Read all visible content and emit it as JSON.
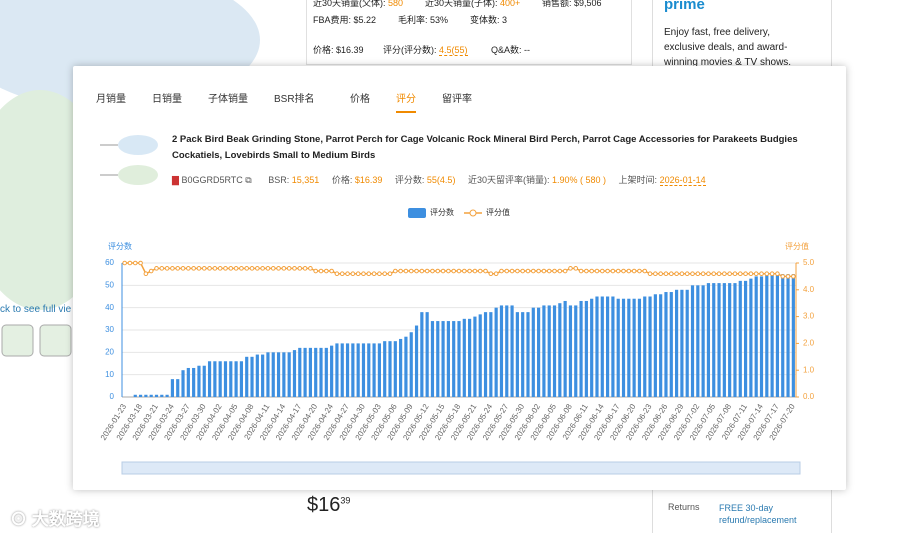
{
  "background": {
    "stats_top": [
      {
        "label": "近30天销量(父体):",
        "value": "580"
      },
      {
        "label": "近30天销量(子体):",
        "value": "400+"
      },
      {
        "label": "销售额:",
        "value": "$9,506"
      }
    ],
    "stats_mid": [
      {
        "label": "FBA费用:",
        "value": "$5.22"
      },
      {
        "label": "毛利率:",
        "value": "53%"
      },
      {
        "label": "变体数:",
        "value": "3"
      }
    ],
    "stats_price": [
      {
        "label": "价格:",
        "value": "$16.39"
      },
      {
        "label": "评分(评分数):",
        "value": "4.5(55)"
      },
      {
        "label": "Q&A数:",
        "value": "--"
      }
    ],
    "prime": {
      "logo": "prime",
      "text": "Enjoy fast, free delivery, exclusive deals, and award-winning movies & TV shows."
    },
    "left_hint": "ck to see full vie",
    "price": {
      "whole": "$16",
      "fraction": "39"
    },
    "returns": {
      "label": "Returns",
      "value": "FREE 30-day refund/replacement"
    },
    "watermark": "大数跨境"
  },
  "popup": {
    "tabs": [
      "月销量",
      "日销量",
      "子体销量",
      "BSR排名",
      "价格",
      "评分",
      "留评率"
    ],
    "active_tab": 5,
    "product": {
      "title": "2 Pack Bird Beak Grinding Stone, Parrot Perch for Cage Volcanic Rock Mineral Bird Perch, Parrot Cage Accessories for Parakeets Budgies Cockatiels, Lovebirds Small to Medium Birds",
      "asin": "B0GGRD5RTC",
      "meta": [
        {
          "label": "BSR:",
          "value": "15,351"
        },
        {
          "label": "价格:",
          "value": "$16.39"
        },
        {
          "label": "评分数:",
          "value": "55(4.5)"
        },
        {
          "label": "近30天留评率(销量):",
          "value": "1.90% ( 580 )"
        },
        {
          "label": "上架时间:",
          "value": "2026-01-14"
        }
      ]
    }
  },
  "chart_data": {
    "type": "bar",
    "y_label": "评分数",
    "y2_label": "评分值",
    "grid": true,
    "legend": "top",
    "categories": [
      "2026-01-23",
      null,
      null,
      "2026-03-18",
      null,
      null,
      "2026-03-21",
      null,
      null,
      "2026-03-24",
      null,
      null,
      "2026-03-27",
      null,
      null,
      "2026-03-30",
      null,
      null,
      "2026-04-02",
      null,
      null,
      "2026-04-05",
      null,
      null,
      "2026-04-08",
      null,
      null,
      "2026-04-11",
      null,
      null,
      "2026-04-14",
      null,
      null,
      "2026-04-17",
      null,
      null,
      "2026-04-20",
      null,
      null,
      "2026-04-24",
      null,
      null,
      "2026-04-27",
      null,
      null,
      "2026-04-30",
      null,
      null,
      "2026-05-03",
      null,
      null,
      "2026-05-06",
      null,
      null,
      "2026-05-09",
      null,
      null,
      "2026-05-12",
      null,
      null,
      "2026-05-15",
      null,
      null,
      "2026-05-18",
      null,
      null,
      "2026-05-21",
      null,
      null,
      "2026-05-24",
      null,
      null,
      "2026-05-27",
      null,
      null,
      "2026-05-30",
      null,
      null,
      "2026-06-02",
      null,
      null,
      "2026-06-05",
      null,
      null,
      "2026-06-08",
      null,
      null,
      "2026-06-11",
      null,
      null,
      "2026-06-14",
      null,
      null,
      "2026-06-17",
      null,
      null,
      "2026-06-20",
      null,
      null,
      "2026-06-23",
      null,
      null,
      "2026-06-26",
      null,
      null,
      "2026-06-29",
      null,
      null,
      "2026-07-02",
      null,
      null,
      "2026-07-05",
      null,
      null,
      "2026-07-08",
      null,
      null,
      "2026-07-11",
      null,
      null,
      "2026-07-14",
      null,
      null,
      "2026-07-17",
      null,
      null,
      "2026-07-20"
    ],
    "series": [
      {
        "name": "评分数",
        "type": "bar",
        "color": "#3d8fe0",
        "values": [
          0,
          0,
          1,
          1,
          1,
          1,
          1,
          1,
          1,
          8,
          8,
          12,
          13,
          13,
          14,
          14,
          16,
          16,
          16,
          16,
          16,
          16,
          16,
          18,
          18,
          19,
          19,
          20,
          20,
          20,
          20,
          20,
          21,
          22,
          22,
          22,
          22,
          22,
          22,
          23,
          24,
          24,
          24,
          24,
          24,
          24,
          24,
          24,
          24,
          25,
          25,
          25,
          26,
          27,
          29,
          32,
          38,
          38,
          34,
          34,
          34,
          34,
          34,
          34,
          35,
          35,
          36,
          37,
          38,
          38,
          40,
          41,
          41,
          41,
          38,
          38,
          38,
          40,
          40,
          41,
          41,
          41,
          42,
          43,
          41,
          41,
          43,
          43,
          44,
          45,
          45,
          45,
          45,
          44,
          44,
          44,
          44,
          44,
          45,
          45,
          46,
          46,
          47,
          47,
          48,
          48,
          48,
          50,
          50,
          50,
          51,
          51,
          51,
          51,
          51,
          51,
          52,
          52,
          53,
          54,
          54,
          55,
          55,
          55,
          55,
          55,
          55
        ]
      },
      {
        "name": "评分值",
        "type": "line",
        "axis": "y2",
        "color": "#f3a23f",
        "values": [
          5,
          5,
          5,
          5,
          4.6,
          4.7,
          4.8,
          4.8,
          4.8,
          4.8,
          4.8,
          4.8,
          4.8,
          4.8,
          4.8,
          4.8,
          4.8,
          4.8,
          4.8,
          4.8,
          4.8,
          4.8,
          4.8,
          4.8,
          4.8,
          4.8,
          4.8,
          4.8,
          4.8,
          4.8,
          4.8,
          4.8,
          4.8,
          4.8,
          4.8,
          4.8,
          4.7,
          4.7,
          4.7,
          4.7,
          4.6,
          4.6,
          4.6,
          4.6,
          4.6,
          4.6,
          4.6,
          4.6,
          4.6,
          4.6,
          4.6,
          4.7,
          4.7,
          4.7,
          4.7,
          4.7,
          4.7,
          4.7,
          4.7,
          4.7,
          4.7,
          4.7,
          4.7,
          4.7,
          4.7,
          4.7,
          4.7,
          4.7,
          4.7,
          4.6,
          4.6,
          4.7,
          4.7,
          4.7,
          4.7,
          4.7,
          4.7,
          4.7,
          4.7,
          4.7,
          4.7,
          4.7,
          4.7,
          4.7,
          4.8,
          4.8,
          4.7,
          4.7,
          4.7,
          4.7,
          4.7,
          4.7,
          4.7,
          4.7,
          4.7,
          4.7,
          4.7,
          4.7,
          4.7,
          4.6,
          4.6,
          4.6,
          4.6,
          4.6,
          4.6,
          4.6,
          4.6,
          4.6,
          4.6,
          4.6,
          4.6,
          4.6,
          4.6,
          4.6,
          4.6,
          4.6,
          4.6,
          4.6,
          4.6,
          4.6,
          4.6,
          4.6,
          4.6,
          4.6,
          4.5,
          4.5,
          4.5
        ]
      }
    ],
    "ylim": [
      0,
      60
    ],
    "yticks": [
      0,
      10,
      20,
      30,
      40,
      50,
      60
    ],
    "y2lim": [
      0,
      5
    ],
    "y2ticks": [
      {
        "value": 0,
        "label": "0.0"
      },
      {
        "value": 1,
        "label": "1.0"
      },
      {
        "value": 2,
        "label": "2.0"
      },
      {
        "value": 3,
        "label": "3.0"
      },
      {
        "value": 4,
        "label": "4.0"
      },
      {
        "value": 5,
        "label": "5.0"
      }
    ]
  }
}
